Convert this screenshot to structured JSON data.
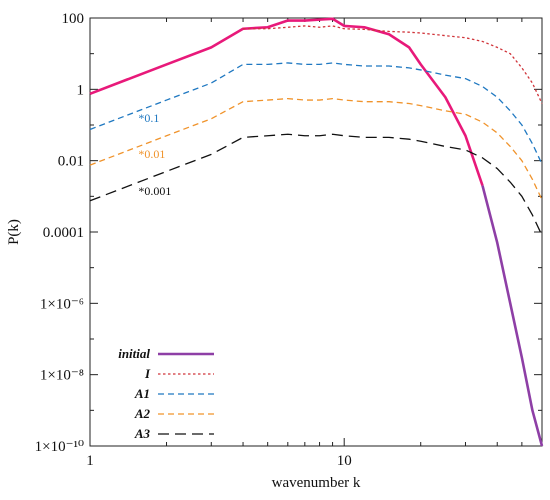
{
  "chart_data": {
    "type": "line",
    "xlabel": "wavenumber k",
    "ylabel": "P(k)",
    "x_scale": "log",
    "y_scale": "log",
    "xlim": [
      1,
      60
    ],
    "ylim": [
      1e-10,
      100
    ],
    "x_ticks": [
      {
        "value": 1,
        "label": "1"
      },
      {
        "value": 10,
        "label": "10"
      }
    ],
    "y_ticks": [
      {
        "value": 100,
        "label": "100"
      },
      {
        "value": 1,
        "label": "1"
      },
      {
        "value": 0.01,
        "label": "0.01"
      },
      {
        "value": 0.0001,
        "label": "0.0001"
      },
      {
        "value": 1e-06,
        "label": "1×10⁻⁶"
      },
      {
        "value": 1e-08,
        "label": "1×10⁻⁸"
      },
      {
        "value": 1e-10,
        "label": "1×10⁻¹⁰"
      }
    ],
    "grid": false,
    "legend_position": "bottom-left",
    "series": [
      {
        "name": "initial",
        "color": "#e8197a",
        "color_tail": "#8e3fa6",
        "style": "solid",
        "x": [
          1,
          2,
          3,
          4,
          5,
          6,
          7,
          8,
          9,
          10,
          12,
          15,
          18,
          20,
          25,
          30,
          35,
          40,
          45,
          50,
          55,
          60
        ],
        "y": [
          0.75,
          5,
          15,
          50,
          55,
          85,
          85,
          90,
          95,
          60,
          55,
          35,
          15,
          5,
          0.6,
          0.05,
          0.002,
          5e-05,
          1e-06,
          3e-08,
          1e-09,
          1e-10
        ]
      },
      {
        "name": "I",
        "color": "#d0343a",
        "style": "dotted",
        "x": [
          4,
          5,
          6,
          7,
          8,
          9,
          10,
          12,
          15,
          18,
          20,
          25,
          30,
          35,
          40,
          45,
          50,
          55,
          60
        ],
        "y": [
          50,
          50,
          55,
          60,
          55,
          60,
          50,
          48,
          42,
          40,
          38,
          32,
          28,
          22,
          15,
          10,
          4,
          1.5,
          0.4
        ]
      },
      {
        "name": "A1",
        "color": "#1f78c1",
        "style": "dashed",
        "x": [
          1,
          2,
          3,
          4,
          5,
          6,
          7,
          8,
          9,
          10,
          12,
          15,
          18,
          20,
          25,
          30,
          35,
          40,
          45,
          50,
          55,
          60
        ],
        "y": [
          0.075,
          0.5,
          1.5,
          5,
          5,
          5.5,
          5,
          5,
          5.5,
          5,
          4.5,
          4.5,
          4,
          3.5,
          2.5,
          2,
          1.2,
          0.6,
          0.25,
          0.1,
          0.03,
          0.008
        ]
      },
      {
        "name": "A2",
        "color": "#f0932b",
        "style": "dashed",
        "x": [
          1,
          2,
          3,
          4,
          5,
          6,
          7,
          8,
          9,
          10,
          12,
          15,
          18,
          20,
          25,
          30,
          35,
          40,
          45,
          50,
          55,
          60
        ],
        "y": [
          0.0075,
          0.05,
          0.15,
          0.45,
          0.5,
          0.55,
          0.5,
          0.5,
          0.55,
          0.5,
          0.45,
          0.45,
          0.4,
          0.35,
          0.25,
          0.2,
          0.12,
          0.06,
          0.025,
          0.01,
          0.003,
          0.0008
        ]
      },
      {
        "name": "A3",
        "color": "#111111",
        "style": "long-dashed",
        "x": [
          1,
          2,
          3,
          4,
          5,
          6,
          7,
          8,
          9,
          10,
          12,
          15,
          18,
          20,
          25,
          30,
          35,
          40,
          45,
          50,
          55,
          60
        ],
        "y": [
          0.00075,
          0.005,
          0.015,
          0.045,
          0.05,
          0.055,
          0.05,
          0.05,
          0.055,
          0.05,
          0.045,
          0.045,
          0.04,
          0.035,
          0.025,
          0.02,
          0.012,
          0.006,
          0.0025,
          0.001,
          0.0003,
          8e-05
        ]
      }
    ],
    "annotations": [
      {
        "text": "*0.1",
        "x": 1.55,
        "y": 0.12,
        "color": "#1f78c1"
      },
      {
        "text": "*0.01",
        "x": 1.55,
        "y": 0.012,
        "color": "#f0932b"
      },
      {
        "text": "*0.001",
        "x": 1.55,
        "y": 0.0011,
        "color": "#111111"
      }
    ]
  }
}
